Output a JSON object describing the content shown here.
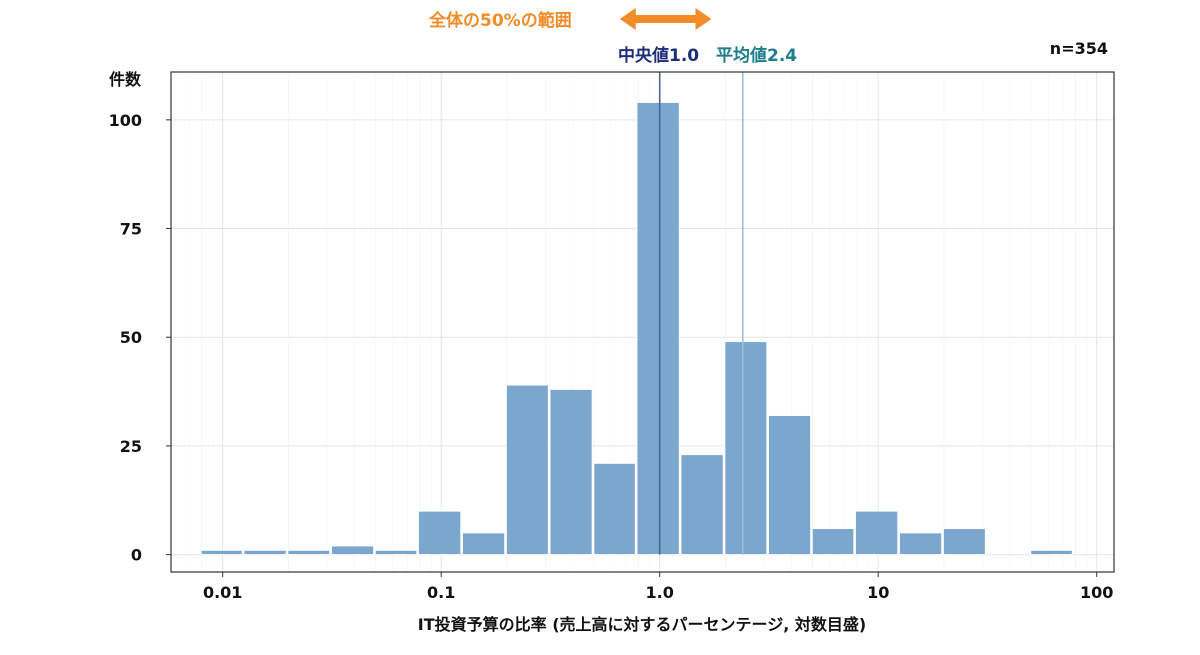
{
  "chart_data": {
    "type": "bar",
    "xscale": "log",
    "xlabel": "IT投資予算の比率 (売上高に対するパーセンテージ, 対数目盛)",
    "ylabel": "件数",
    "sample_size": "n=354",
    "xticks": [
      "0.01",
      "0.1",
      "1.0",
      "10",
      "100"
    ],
    "yticks": [
      "0",
      "25",
      "50",
      "75",
      "100"
    ],
    "xlim": [
      0.0058,
      120
    ],
    "ylim": [
      -4,
      111
    ],
    "grid": true,
    "bar_color": "#7ba6cd",
    "bins": [
      {
        "from": 0.0079,
        "to": 0.0124,
        "count": 1
      },
      {
        "from": 0.0124,
        "to": 0.0197,
        "count": 1
      },
      {
        "from": 0.0197,
        "to": 0.0312,
        "count": 1
      },
      {
        "from": 0.0312,
        "to": 0.0495,
        "count": 2
      },
      {
        "from": 0.0495,
        "to": 0.078,
        "count": 1
      },
      {
        "from": 0.078,
        "to": 0.124,
        "count": 10
      },
      {
        "from": 0.124,
        "to": 0.197,
        "count": 5
      },
      {
        "from": 0.197,
        "to": 0.312,
        "count": 39
      },
      {
        "from": 0.312,
        "to": 0.495,
        "count": 38
      },
      {
        "from": 0.495,
        "to": 0.78,
        "count": 21
      },
      {
        "from": 0.78,
        "to": 1.24,
        "count": 104
      },
      {
        "from": 1.24,
        "to": 1.97,
        "count": 23
      },
      {
        "from": 1.97,
        "to": 3.12,
        "count": 49
      },
      {
        "from": 3.12,
        "to": 4.95,
        "count": 32
      },
      {
        "from": 4.95,
        "to": 7.8,
        "count": 6
      },
      {
        "from": 7.8,
        "to": 12.4,
        "count": 10
      },
      {
        "from": 12.4,
        "to": 19.7,
        "count": 5
      },
      {
        "from": 19.7,
        "to": 31.2,
        "count": 6
      },
      {
        "from": 49.5,
        "to": 78,
        "count": 1
      }
    ],
    "reference_lines": [
      {
        "label": "中央値1.0",
        "value": 1.0,
        "color": "#1d2f7a",
        "line_color": "#4a6a94"
      },
      {
        "label": "平均値2.4",
        "value": 2.4,
        "color": "#1d7d8a",
        "line_color": "#9bc0d8"
      }
    ],
    "range_annotation": {
      "label": "全体の50%の範囲",
      "color": "#f28c28",
      "from": 0.44,
      "to": 2.0
    }
  }
}
